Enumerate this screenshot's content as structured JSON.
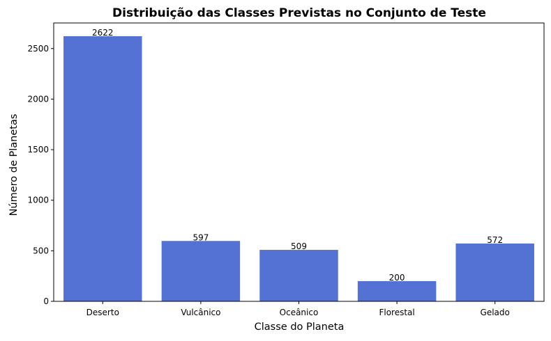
{
  "chart_data": {
    "type": "bar",
    "title": "Distribuição das Classes Previstas no Conjunto de Teste",
    "xlabel": "Classe do Planeta",
    "ylabel": "Número de Planetas",
    "categories": [
      "Deserto",
      "Vulcânico",
      "Oceânico",
      "Florestal",
      "Gelado"
    ],
    "values": [
      2622,
      597,
      509,
      200,
      572
    ],
    "data_labels": [
      "2622",
      "597",
      "509",
      "200",
      "572"
    ],
    "ylim": [
      0,
      2753
    ],
    "yticks": [
      0,
      500,
      1000,
      1500,
      2000,
      2500
    ],
    "ytick_labels": [
      "0",
      "500",
      "1000",
      "1500",
      "2000",
      "2500"
    ],
    "bar_color": "#5472d3",
    "grid": false,
    "legend": "none"
  }
}
